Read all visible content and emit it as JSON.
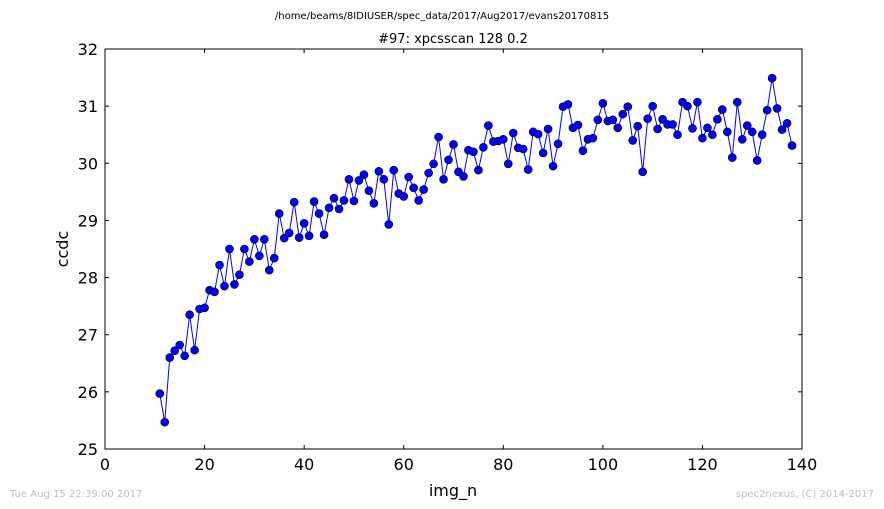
{
  "header": {
    "path": "/home/beams/8IDIUSER/spec_data/2017/Aug2017/evans20170815"
  },
  "footer": {
    "timestamp": "Tue Aug 15 22:39:00 2017",
    "credit": "spec2nexus, (C) 2014-2017"
  },
  "colors": {
    "line": "#0000ff",
    "marker": "#0000ff",
    "axes": "#000000"
  },
  "chart_data": {
    "type": "line",
    "title": "#97: xpcsscan 128 0.2",
    "xlabel": "img_n",
    "ylabel": "ccdc",
    "xlim": [
      0,
      140
    ],
    "ylim": [
      25,
      32
    ],
    "xticks": [
      0,
      20,
      40,
      60,
      80,
      100,
      120,
      140
    ],
    "yticks": [
      25,
      26,
      27,
      28,
      29,
      30,
      31,
      32
    ],
    "xtick_labels": [
      "0",
      "20",
      "40",
      "60",
      "80",
      "100",
      "120",
      "140"
    ],
    "ytick_labels": [
      "25",
      "26",
      "27",
      "28",
      "29",
      "30",
      "31",
      "32"
    ],
    "grid": false,
    "markers": "circle",
    "series": [
      {
        "x": [
          11,
          12,
          13,
          14,
          15,
          16,
          17,
          18,
          19,
          20,
          21,
          22,
          23,
          24,
          25,
          26,
          27,
          28,
          29,
          30,
          31,
          32,
          33,
          34,
          35,
          36,
          37,
          38,
          39,
          40,
          41,
          42,
          43,
          44,
          45,
          46,
          47,
          48,
          49,
          50,
          51,
          52,
          53,
          54,
          55,
          56,
          57,
          58,
          59,
          60,
          61,
          62,
          63,
          64,
          65,
          66,
          67,
          68,
          69,
          70,
          71,
          72,
          73,
          74,
          75,
          76,
          77,
          78,
          79,
          80,
          81,
          82,
          83,
          84,
          85,
          86,
          87,
          88,
          89,
          90,
          91,
          92,
          93,
          94,
          95,
          96,
          97,
          98,
          99,
          100,
          101,
          102,
          103,
          104,
          105,
          106,
          107,
          108,
          109,
          110,
          111,
          112,
          113,
          114,
          115,
          116,
          117,
          118,
          119,
          120,
          121,
          122,
          123,
          124,
          125,
          126,
          127,
          128,
          129,
          130,
          131,
          132,
          133,
          134,
          135,
          136,
          137,
          138
        ],
        "y": [
          25.97,
          25.47,
          26.6,
          26.72,
          26.82,
          26.63,
          27.35,
          26.73,
          27.45,
          27.47,
          27.78,
          27.75,
          28.22,
          27.85,
          28.5,
          27.88,
          28.05,
          28.5,
          28.28,
          28.67,
          28.38,
          28.67,
          28.13,
          28.34,
          29.12,
          28.69,
          28.78,
          29.32,
          28.7,
          28.95,
          28.73,
          29.33,
          29.12,
          28.75,
          29.22,
          29.39,
          29.2,
          29.35,
          29.72,
          29.34,
          29.7,
          29.8,
          29.52,
          29.3,
          29.86,
          29.72,
          28.93,
          29.88,
          29.47,
          29.42,
          29.76,
          29.57,
          29.35,
          29.54,
          29.83,
          29.99,
          30.46,
          29.72,
          30.06,
          30.33,
          29.85,
          29.77,
          30.23,
          30.2,
          29.88,
          30.28,
          30.66,
          30.38,
          30.39,
          30.42,
          29.99,
          30.53,
          30.27,
          30.25,
          29.89,
          30.55,
          30.51,
          30.18,
          30.6,
          29.95,
          30.34,
          30.99,
          31.03,
          30.62,
          30.67,
          30.22,
          30.42,
          30.44,
          30.76,
          31.05,
          30.74,
          30.76,
          30.62,
          30.86,
          30.99,
          30.4,
          30.65,
          29.85,
          30.78,
          31.0,
          30.6,
          30.77,
          30.68,
          30.68,
          30.5,
          31.07,
          31.0,
          30.61,
          31.07,
          30.44,
          30.62,
          30.5,
          30.77,
          30.94,
          30.55,
          30.1,
          31.07,
          30.42,
          30.66,
          30.55,
          30.05,
          30.5,
          30.93,
          31.49,
          30.96,
          30.59,
          30.7,
          30.31
        ]
      }
    ]
  }
}
